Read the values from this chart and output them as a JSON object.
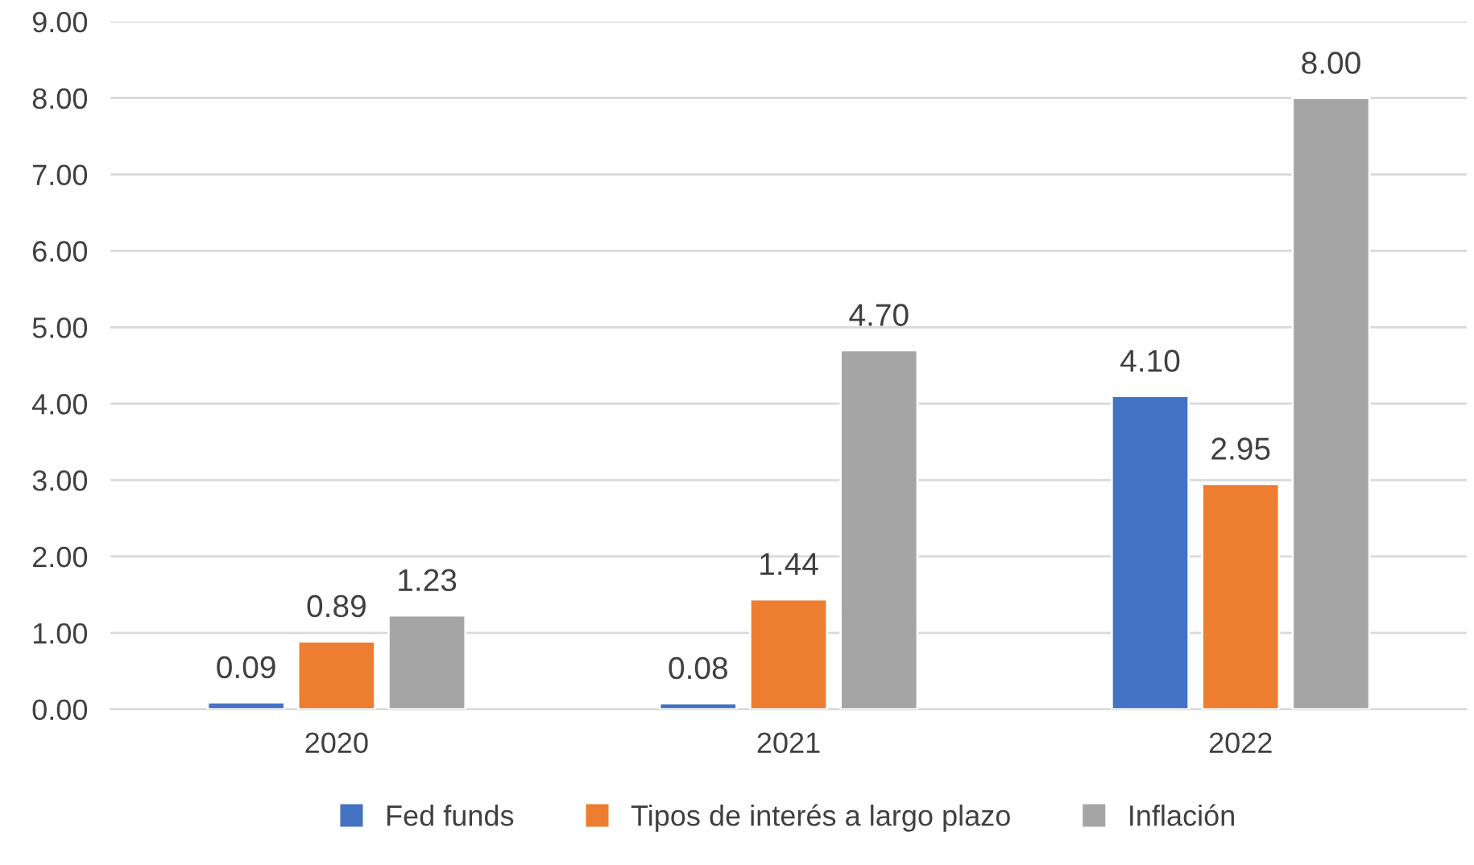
{
  "chart_data": {
    "type": "bar",
    "categories": [
      "2020",
      "2021",
      "2022"
    ],
    "series": [
      {
        "name": "Fed funds",
        "color": "#4472c4",
        "values": [
          0.09,
          0.08,
          4.1
        ],
        "value_labels": [
          "0.09",
          "0.08",
          "4.10"
        ]
      },
      {
        "name": "Tipos de interés a largo plazo",
        "color": "#ed7d31",
        "values": [
          0.89,
          1.44,
          2.95
        ],
        "value_labels": [
          "0.89",
          "1.44",
          "2.95"
        ]
      },
      {
        "name": "Inflación",
        "color": "#a5a5a5",
        "values": [
          1.23,
          4.7,
          8.0
        ],
        "value_labels": [
          "1.23",
          "4.70",
          "8.00"
        ]
      }
    ],
    "ylim": [
      0,
      9
    ],
    "yticks": [
      {
        "value": 0,
        "label": "0.00"
      },
      {
        "value": 1,
        "label": "1.00"
      },
      {
        "value": 2,
        "label": "2.00"
      },
      {
        "value": 3,
        "label": "3.00"
      },
      {
        "value": 4,
        "label": "4.00"
      },
      {
        "value": 5,
        "label": "5.00"
      },
      {
        "value": 6,
        "label": "6.00"
      },
      {
        "value": 7,
        "label": "7.00"
      },
      {
        "value": 8,
        "label": "8.00"
      },
      {
        "value": 9,
        "label": "9.00"
      }
    ],
    "grid": "y",
    "legend": "bottom"
  }
}
